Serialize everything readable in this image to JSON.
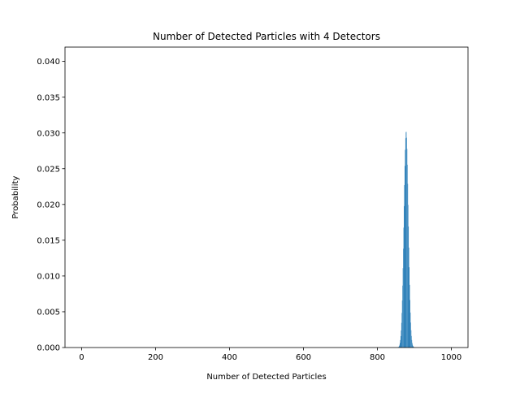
{
  "chart_data": {
    "type": "bar",
    "title": "Number of Detected Particles with 4 Detectors",
    "xlabel": "Number of Detected Particles",
    "ylabel": "Probability",
    "xlim": [
      -45,
      1045
    ],
    "ylim": [
      0,
      0.042
    ],
    "xticks": [
      0,
      200,
      400,
      600,
      800,
      1000
    ],
    "yticks": [
      "0.000",
      "0.005",
      "0.010",
      "0.015",
      "0.020",
      "0.025",
      "0.030",
      "0.035",
      "0.040"
    ],
    "grid": false,
    "bar_color": "#1f77b4",
    "bar_width": 0.8,
    "x_start": 855,
    "values": [
      2e-05,
      4e-05,
      7e-05,
      0.00013,
      0.00023,
      0.00039,
      0.00065,
      0.00104,
      0.0016,
      0.00239,
      0.00345,
      0.00484,
      0.00657,
      0.00866,
      0.0111,
      0.01382,
      0.01676,
      0.01977,
      0.02271,
      0.02539,
      0.02764,
      0.02926,
      0.03012,
      0.03015,
      0.02934,
      0.02777,
      0.02556,
      0.02289,
      0.01995,
      0.01692,
      0.01397,
      0.01122,
      0.00876,
      0.00664,
      0.00489,
      0.00349,
      0.00242,
      0.00162,
      0.00105,
      0.00066,
      0.0004,
      0.00024,
      0.00014,
      8e-05,
      4e-05,
      2e-05
    ]
  }
}
